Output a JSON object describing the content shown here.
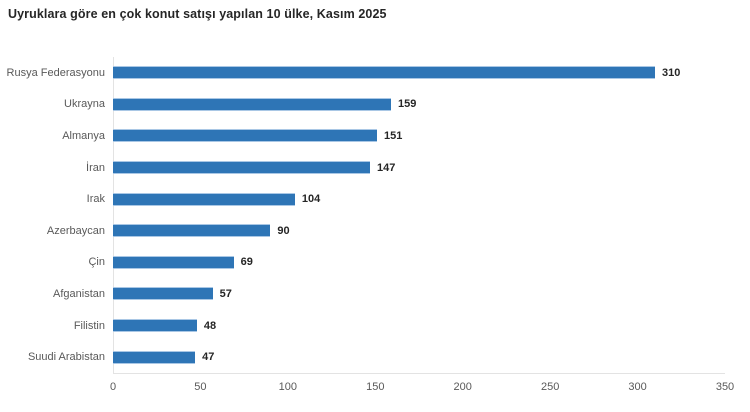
{
  "chart_data": {
    "type": "bar",
    "orientation": "horizontal",
    "title": "Uyruklara göre en çok konut satışı yapılan 10 ülke, Kasım 2025",
    "categories": [
      "Rusya Federasyonu",
      "Ukrayna",
      "Almanya",
      "İran",
      "Irak",
      "Azerbaycan",
      "Çin",
      "Afganistan",
      "Filistin",
      "Suudi Arabistan"
    ],
    "values": [
      310,
      159,
      151,
      147,
      104,
      90,
      69,
      57,
      48,
      47
    ],
    "xlabel": "",
    "ylabel": "",
    "xlim": [
      0,
      350
    ],
    "xticks": [
      0,
      50,
      100,
      150,
      200,
      250,
      300,
      350
    ],
    "grid": false,
    "legend": false,
    "value_labels_shown": true,
    "colors": {
      "bar": "#2e75b6",
      "bar_edge": "#a9c7e5",
      "title_text": "#262626",
      "value_label_text": "#262626",
      "category_label_text": "#595959",
      "tick_label_text": "#595959",
      "axis_line": "#e3e3e3",
      "background": "#ffffff"
    }
  }
}
